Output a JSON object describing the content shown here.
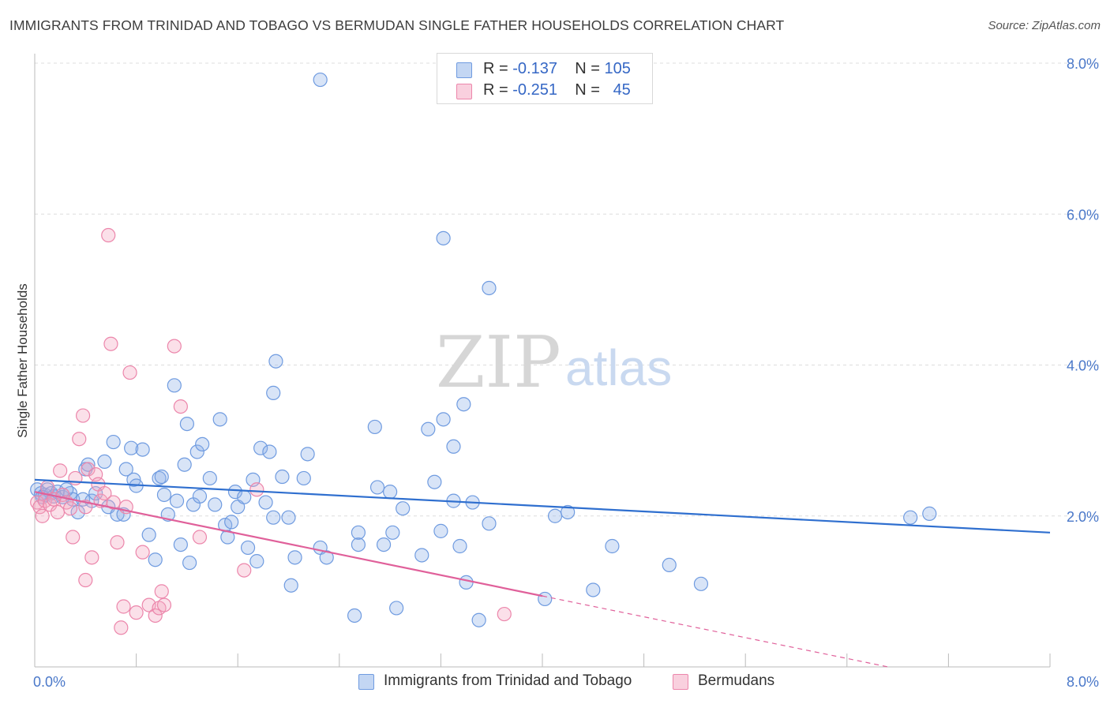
{
  "header": {
    "title": "IMMIGRANTS FROM TRINIDAD AND TOBAGO VS BERMUDAN SINGLE FATHER HOUSEHOLDS CORRELATION CHART",
    "source": "Source: ZipAtlas.com"
  },
  "watermark": {
    "zip": "ZIP",
    "atlas": "atlas"
  },
  "legend_top": {
    "rows": [
      {
        "r_label": "R =",
        "r_value": "-0.137",
        "n_label": "N =",
        "n_value": "105",
        "color": "#8fb3e8"
      },
      {
        "r_label": "R =",
        "r_value": "-0.251",
        "n_label": "N =",
        "n_value": "45",
        "color": "#f4a6c1"
      }
    ]
  },
  "legend_bottom": [
    {
      "label": "Immigrants from Trinidad and Tobago",
      "color": "#8fb3e8"
    },
    {
      "label": "Bermudans",
      "color": "#f4a6c1"
    }
  ],
  "chart_data": {
    "type": "scatter",
    "title": "IMMIGRANTS FROM TRINIDAD AND TOBAGO VS BERMUDAN SINGLE FATHER HOUSEHOLDS CORRELATION CHART",
    "xlabel": "",
    "ylabel": "Single Father Households",
    "xlim": [
      0,
      8
    ],
    "ylim": [
      0,
      8
    ],
    "x_ticks": [
      "0.0%",
      "8.0%"
    ],
    "y_ticks": [
      {
        "value": 2,
        "label": "2.0%"
      },
      {
        "value": 4,
        "label": "4.0%"
      },
      {
        "value": 6,
        "label": "6.0%"
      },
      {
        "value": 8,
        "label": "8.0%"
      }
    ],
    "grid": true,
    "legend": "top-center",
    "series": [
      {
        "name": "Immigrants from Trinidad and Tobago",
        "color": "#8fb3e8",
        "line_color": "#2f6fcf",
        "trend": {
          "x0": 0.0,
          "y0": 2.48,
          "x1": 8.0,
          "y1": 1.78
        },
        "points": [
          [
            0.02,
            2.35
          ],
          [
            0.05,
            2.3
          ],
          [
            0.08,
            2.28
          ],
          [
            0.1,
            2.35
          ],
          [
            0.13,
            2.3
          ],
          [
            0.15,
            2.26
          ],
          [
            0.18,
            2.32
          ],
          [
            0.22,
            2.25
          ],
          [
            0.28,
            2.3
          ],
          [
            0.3,
            2.22
          ],
          [
            0.34,
            2.05
          ],
          [
            0.38,
            2.22
          ],
          [
            0.4,
            2.62
          ],
          [
            0.42,
            2.68
          ],
          [
            0.45,
            2.2
          ],
          [
            0.48,
            2.3
          ],
          [
            0.55,
            2.72
          ],
          [
            0.58,
            2.12
          ],
          [
            0.62,
            2.98
          ],
          [
            0.65,
            2.02
          ],
          [
            0.7,
            2.02
          ],
          [
            0.72,
            2.62
          ],
          [
            0.76,
            2.9
          ],
          [
            0.78,
            2.48
          ],
          [
            0.8,
            2.4
          ],
          [
            0.85,
            2.88
          ],
          [
            0.9,
            1.75
          ],
          [
            0.95,
            1.42
          ],
          [
            0.98,
            2.5
          ],
          [
            1.0,
            2.52
          ],
          [
            1.02,
            2.28
          ],
          [
            1.05,
            2.02
          ],
          [
            1.1,
            3.73
          ],
          [
            1.12,
            2.2
          ],
          [
            1.15,
            1.62
          ],
          [
            1.18,
            2.68
          ],
          [
            1.2,
            3.22
          ],
          [
            1.22,
            1.38
          ],
          [
            1.25,
            2.15
          ],
          [
            1.28,
            2.85
          ],
          [
            1.3,
            2.26
          ],
          [
            1.32,
            2.95
          ],
          [
            1.38,
            2.5
          ],
          [
            1.42,
            2.15
          ],
          [
            1.46,
            3.28
          ],
          [
            1.5,
            1.88
          ],
          [
            1.52,
            1.72
          ],
          [
            1.55,
            1.92
          ],
          [
            1.58,
            2.32
          ],
          [
            1.6,
            2.12
          ],
          [
            1.65,
            2.25
          ],
          [
            1.68,
            1.58
          ],
          [
            1.72,
            2.48
          ],
          [
            1.75,
            1.4
          ],
          [
            1.78,
            2.9
          ],
          [
            1.82,
            2.18
          ],
          [
            1.85,
            2.85
          ],
          [
            1.88,
            1.98
          ],
          [
            1.9,
            4.05
          ],
          [
            1.88,
            3.63
          ],
          [
            1.95,
            2.52
          ],
          [
            2.0,
            1.98
          ],
          [
            2.02,
            1.08
          ],
          [
            2.05,
            1.45
          ],
          [
            2.12,
            2.5
          ],
          [
            2.15,
            2.82
          ],
          [
            2.25,
            1.58
          ],
          [
            2.3,
            1.45
          ],
          [
            2.25,
            7.78
          ],
          [
            2.52,
            0.68
          ],
          [
            2.55,
            1.62
          ],
          [
            2.55,
            1.78
          ],
          [
            2.7,
            2.38
          ],
          [
            2.68,
            3.18
          ],
          [
            2.75,
            1.62
          ],
          [
            2.8,
            2.32
          ],
          [
            2.82,
            1.78
          ],
          [
            2.85,
            0.78
          ],
          [
            2.9,
            2.1
          ],
          [
            3.05,
            1.48
          ],
          [
            3.1,
            3.15
          ],
          [
            3.15,
            2.45
          ],
          [
            3.2,
            1.8
          ],
          [
            3.22,
            3.28
          ],
          [
            3.3,
            2.2
          ],
          [
            3.3,
            2.92
          ],
          [
            3.35,
            1.6
          ],
          [
            3.38,
            3.48
          ],
          [
            3.4,
            1.12
          ],
          [
            3.45,
            2.18
          ],
          [
            3.5,
            0.62
          ],
          [
            3.58,
            5.02
          ],
          [
            3.58,
            1.9
          ],
          [
            4.02,
            0.9
          ],
          [
            4.1,
            2.0
          ],
          [
            4.2,
            2.05
          ],
          [
            4.4,
            1.02
          ],
          [
            4.55,
            1.6
          ],
          [
            5.0,
            1.35
          ],
          [
            5.25,
            1.1
          ],
          [
            6.9,
            1.98
          ],
          [
            7.05,
            2.03
          ],
          [
            3.22,
            5.68
          ],
          [
            0.06,
            2.25
          ],
          [
            0.25,
            2.35
          ]
        ]
      },
      {
        "name": "Bermudans",
        "color": "#f4a6c1",
        "line_color": "#e0609a",
        "trend": {
          "x0": 0.0,
          "y0": 2.32,
          "x1": 4.0,
          "y1": 0.94
        },
        "trend_extension": {
          "x0": 4.0,
          "y0": 0.94,
          "x1": 8.0,
          "y1": -0.44
        },
        "points": [
          [
            0.02,
            2.18
          ],
          [
            0.04,
            2.12
          ],
          [
            0.06,
            2.0
          ],
          [
            0.08,
            2.2
          ],
          [
            0.1,
            2.38
          ],
          [
            0.12,
            2.15
          ],
          [
            0.15,
            2.22
          ],
          [
            0.18,
            2.05
          ],
          [
            0.2,
            2.6
          ],
          [
            0.22,
            2.28
          ],
          [
            0.25,
            2.18
          ],
          [
            0.28,
            2.1
          ],
          [
            0.3,
            1.72
          ],
          [
            0.32,
            2.5
          ],
          [
            0.35,
            3.02
          ],
          [
            0.38,
            3.33
          ],
          [
            0.4,
            2.12
          ],
          [
            0.4,
            1.15
          ],
          [
            0.42,
            2.62
          ],
          [
            0.45,
            1.45
          ],
          [
            0.48,
            2.55
          ],
          [
            0.5,
            2.42
          ],
          [
            0.52,
            2.2
          ],
          [
            0.55,
            2.3
          ],
          [
            0.58,
            5.72
          ],
          [
            0.6,
            4.28
          ],
          [
            0.62,
            2.18
          ],
          [
            0.65,
            1.65
          ],
          [
            0.68,
            0.52
          ],
          [
            0.72,
            2.12
          ],
          [
            0.7,
            0.8
          ],
          [
            0.75,
            3.9
          ],
          [
            0.8,
            0.72
          ],
          [
            0.85,
            1.52
          ],
          [
            0.9,
            0.82
          ],
          [
            0.95,
            0.68
          ],
          [
            0.98,
            0.78
          ],
          [
            1.0,
            1.0
          ],
          [
            1.02,
            0.82
          ],
          [
            1.1,
            4.25
          ],
          [
            1.15,
            3.45
          ],
          [
            1.3,
            1.72
          ],
          [
            1.65,
            1.28
          ],
          [
            1.75,
            2.35
          ],
          [
            3.7,
            0.7
          ]
        ]
      }
    ]
  }
}
